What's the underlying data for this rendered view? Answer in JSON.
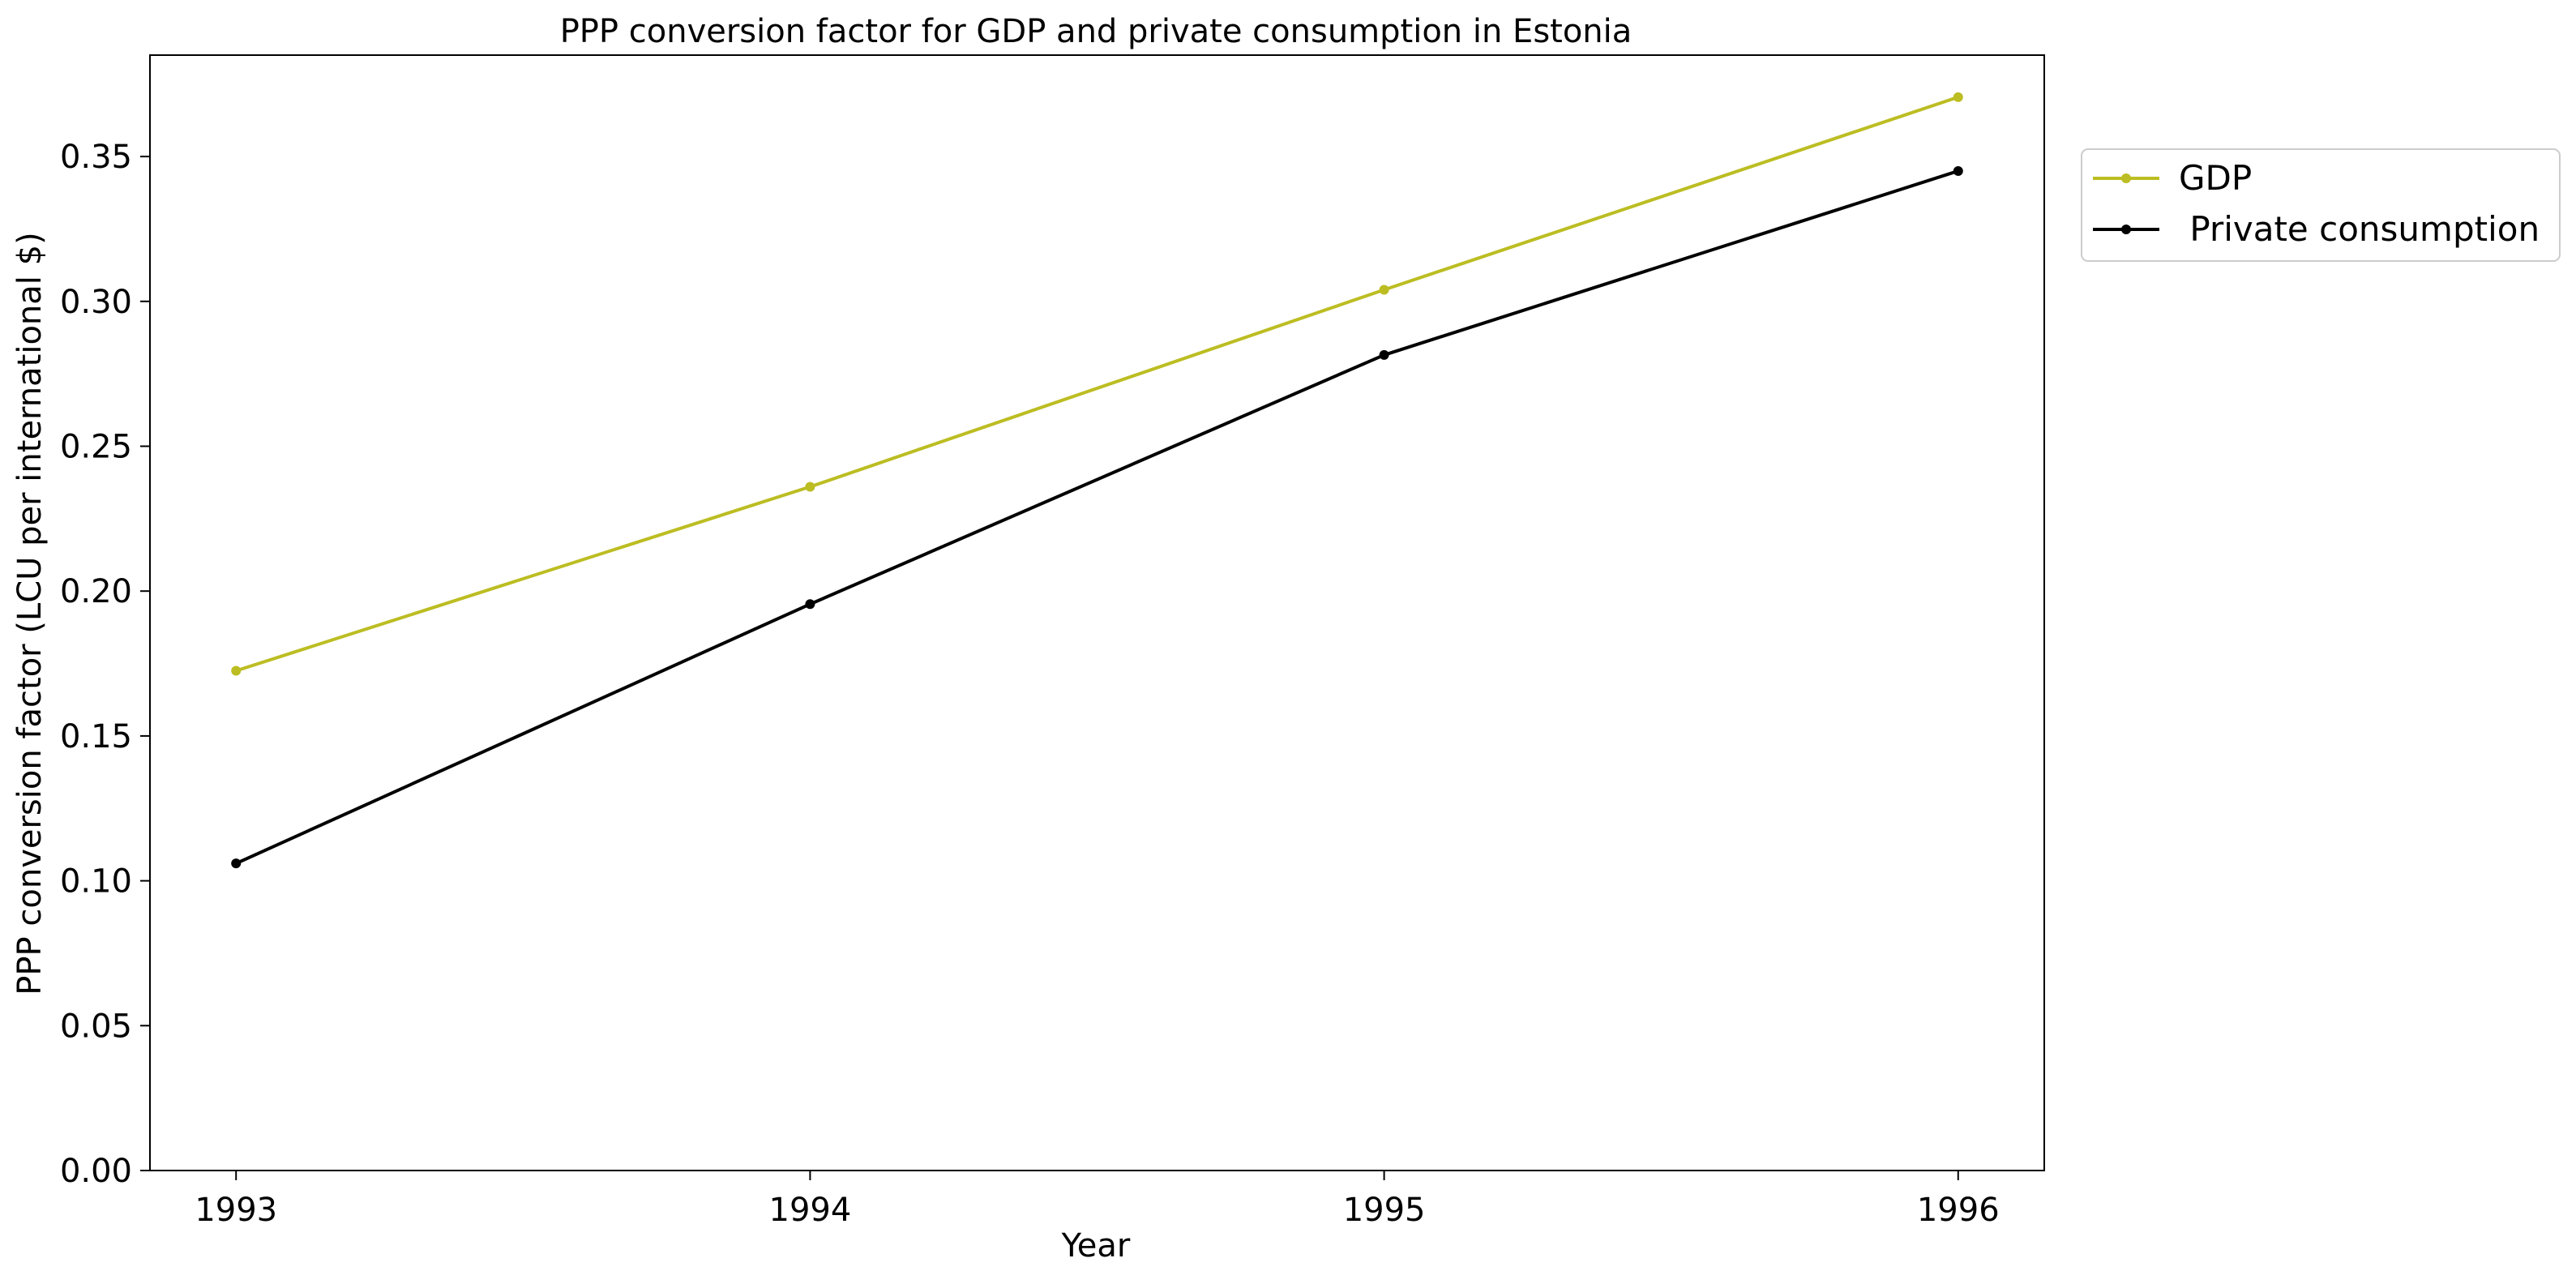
{
  "chart_data": {
    "type": "line",
    "title": "PPP conversion factor for GDP and private consumption in Estonia",
    "xlabel": "Year",
    "ylabel": "PPP conversion factor (LCU per international $)",
    "x": [
      1993,
      1994,
      1995,
      1996
    ],
    "x_tick_labels": [
      "1993",
      "1994",
      "1995",
      "1996"
    ],
    "ylim": [
      0,
      0.385
    ],
    "y_ticks": [
      0.0,
      0.05,
      0.1,
      0.15,
      0.2,
      0.25,
      0.3,
      0.35
    ],
    "y_tick_labels": [
      "0.00",
      "0.05",
      "0.10",
      "0.15",
      "0.20",
      "0.25",
      "0.30",
      "0.35"
    ],
    "grid": false,
    "legend_position": "outside-top-right",
    "series": [
      {
        "name": "GDP",
        "color": "#bcbd22",
        "values": [
          0.1725,
          0.236,
          0.304,
          0.3705
        ]
      },
      {
        "name": " Private consumption",
        "color": "#000000",
        "values": [
          0.106,
          0.1955,
          0.2815,
          0.345
        ]
      }
    ]
  }
}
